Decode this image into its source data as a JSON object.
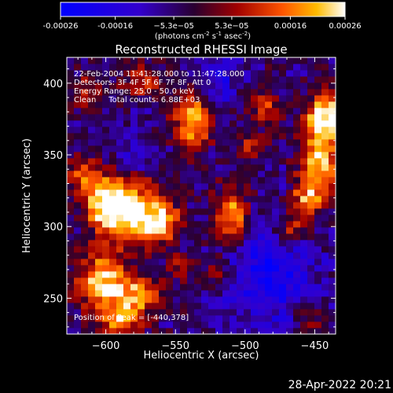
{
  "chart_data": {
    "type": "heatmap",
    "title": "Reconstructed RHESSI Image",
    "xlabel": "Heliocentric X (arcsec)",
    "ylabel": "Heliocentric Y (arcsec)",
    "xlim": [
      -628,
      -435
    ],
    "ylim": [
      225,
      418
    ],
    "x_ticks": [
      -600,
      -550,
      -500,
      -450
    ],
    "y_ticks": [
      250,
      300,
      350,
      400
    ],
    "colorbar": {
      "ticks": [
        "-0.00026",
        "-0.00016",
        "−5.3e−05",
        "5.3e−05",
        "0.00016",
        "0.00026"
      ],
      "tick_values": [
        -0.00026,
        -0.00016,
        -5.3e-05,
        5.3e-05,
        0.00016,
        0.00026
      ],
      "range": [
        -0.00026,
        0.00026
      ],
      "unit_prefix": "(photons cm",
      "unit_sup1": "-2",
      "unit_mid1": " s",
      "unit_sup2": "-1",
      "unit_mid2": " asec",
      "unit_sup3": "-2",
      "unit_suffix": ")"
    },
    "annotations": [
      "22-Feb-2004 11:41:28.000 to 11:47:28.000",
      "Detectors: 3F 4F 5F 6F 7F 8F, Att 0",
      "Energy Range: 25.0 - 50.0 keV",
      "Clean     Total counts: 6.88E+03"
    ],
    "peak_label": "Position of Peak = [-440,378]",
    "peak_position": [
      -440,
      378
    ],
    "total_counts": 6880,
    "bright_regions": [
      {
        "x": -582,
        "y": 310,
        "sx": 17,
        "sy": 15,
        "amp": 1.0
      },
      {
        "x": -600,
        "y": 318,
        "sx": 10,
        "sy": 12,
        "amp": 0.7
      },
      {
        "x": -560,
        "y": 302,
        "sx": 9,
        "sy": 9,
        "amp": 0.6
      },
      {
        "x": -603,
        "y": 262,
        "sx": 12,
        "sy": 14,
        "amp": 0.85
      },
      {
        "x": -578,
        "y": 252,
        "sx": 12,
        "sy": 11,
        "amp": 0.7
      },
      {
        "x": -592,
        "y": 235,
        "sx": 10,
        "sy": 8,
        "amp": 0.6
      },
      {
        "x": -440,
        "y": 378,
        "sx": 11,
        "sy": 11,
        "amp": 1.0
      },
      {
        "x": -446,
        "y": 345,
        "sx": 10,
        "sy": 17,
        "amp": 0.85
      },
      {
        "x": -456,
        "y": 320,
        "sx": 8,
        "sy": 9,
        "amp": 0.6
      },
      {
        "x": -466,
        "y": 300,
        "sx": 9,
        "sy": 9,
        "amp": 0.55
      },
      {
        "x": -538,
        "y": 374,
        "sx": 9,
        "sy": 14,
        "amp": 0.85
      },
      {
        "x": -509,
        "y": 307,
        "sx": 9,
        "sy": 13,
        "amp": 0.9
      },
      {
        "x": -572,
        "y": 402,
        "sx": 12,
        "sy": 8,
        "amp": 0.45
      },
      {
        "x": -615,
        "y": 393,
        "sx": 8,
        "sy": 8,
        "amp": 0.4
      },
      {
        "x": -616,
        "y": 338,
        "sx": 9,
        "sy": 9,
        "amp": 0.55
      },
      {
        "x": -486,
        "y": 382,
        "sx": 8,
        "sy": 10,
        "amp": 0.45
      },
      {
        "x": -497,
        "y": 355,
        "sx": 7,
        "sy": 7,
        "amp": 0.4
      },
      {
        "x": -520,
        "y": 270,
        "sx": 8,
        "sy": 8,
        "amp": 0.45
      },
      {
        "x": -546,
        "y": 272,
        "sx": 7,
        "sy": 7,
        "amp": 0.35
      },
      {
        "x": -455,
        "y": 237,
        "sx": 7,
        "sy": 7,
        "amp": 0.35
      }
    ],
    "dark_regions": [
      {
        "x": -484,
        "y": 270,
        "sx": 24,
        "sy": 28,
        "amp": 0.55
      },
      {
        "x": -518,
        "y": 400,
        "sx": 10,
        "sy": 12,
        "amp": 0.35
      },
      {
        "x": -578,
        "y": 350,
        "sx": 10,
        "sy": 10,
        "amp": 0.3
      }
    ]
  },
  "footer": {
    "timestamp": "28-Apr-2022 20:21"
  }
}
